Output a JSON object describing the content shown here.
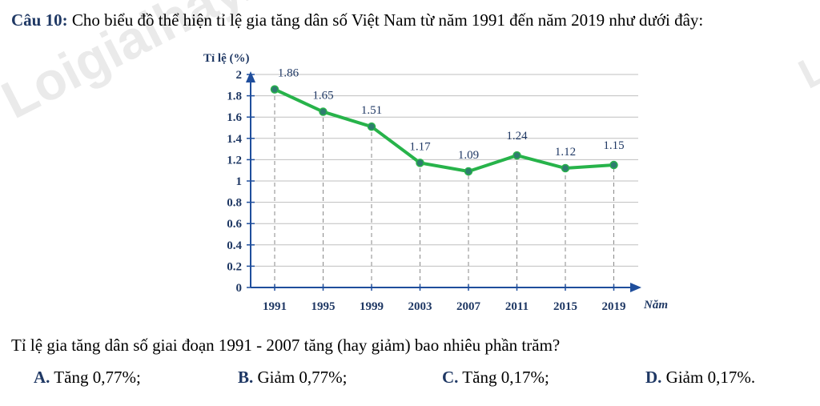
{
  "question": {
    "number": "Câu 10:",
    "text": "Cho biểu đồ thể hiện tỉ lệ gia tăng dân số Việt Nam từ năm 1991 đến năm 2019 như dưới đây:"
  },
  "watermark": {
    "left": "Loigiaihay.com",
    "right": "Lo"
  },
  "prompt": "Tỉ lệ gia tăng dân số giai đoạn 1991 - 2007 tăng (hay giảm) bao nhiêu phần trăm?",
  "answers": [
    {
      "letter": "A.",
      "text": "Tăng 0,77%;"
    },
    {
      "letter": "B.",
      "text": "Giảm 0,77%;"
    },
    {
      "letter": "C.",
      "text": "Tăng 0,17%;"
    },
    {
      "letter": "D.",
      "text": "Giảm 0,17%."
    }
  ],
  "colors": {
    "line": "#27b34a",
    "marker": "#2e7d6e",
    "axis": "#1f4e9c",
    "label": "#1f3864",
    "grid": "#bfbfbf"
  },
  "chart_data": {
    "type": "line",
    "title": "",
    "ylabel": "Tỉ lệ (%)",
    "xlabel": "Năm",
    "categories": [
      "1991",
      "1995",
      "1999",
      "2003",
      "2007",
      "2011",
      "2015",
      "2019"
    ],
    "values": [
      1.86,
      1.65,
      1.51,
      1.17,
      1.09,
      1.24,
      1.12,
      1.15
    ],
    "data_labels": [
      "1.86",
      "1.65",
      "1.51",
      "1.17",
      "1.09",
      "1.24",
      "1.12",
      "1.15"
    ],
    "yticks": [
      "0",
      "0.2",
      "0.4",
      "0.6",
      "0.8",
      "1",
      "1.2",
      "1.4",
      "1.6",
      "1.8",
      "2"
    ],
    "ylim": [
      0,
      2
    ],
    "grid": true
  }
}
